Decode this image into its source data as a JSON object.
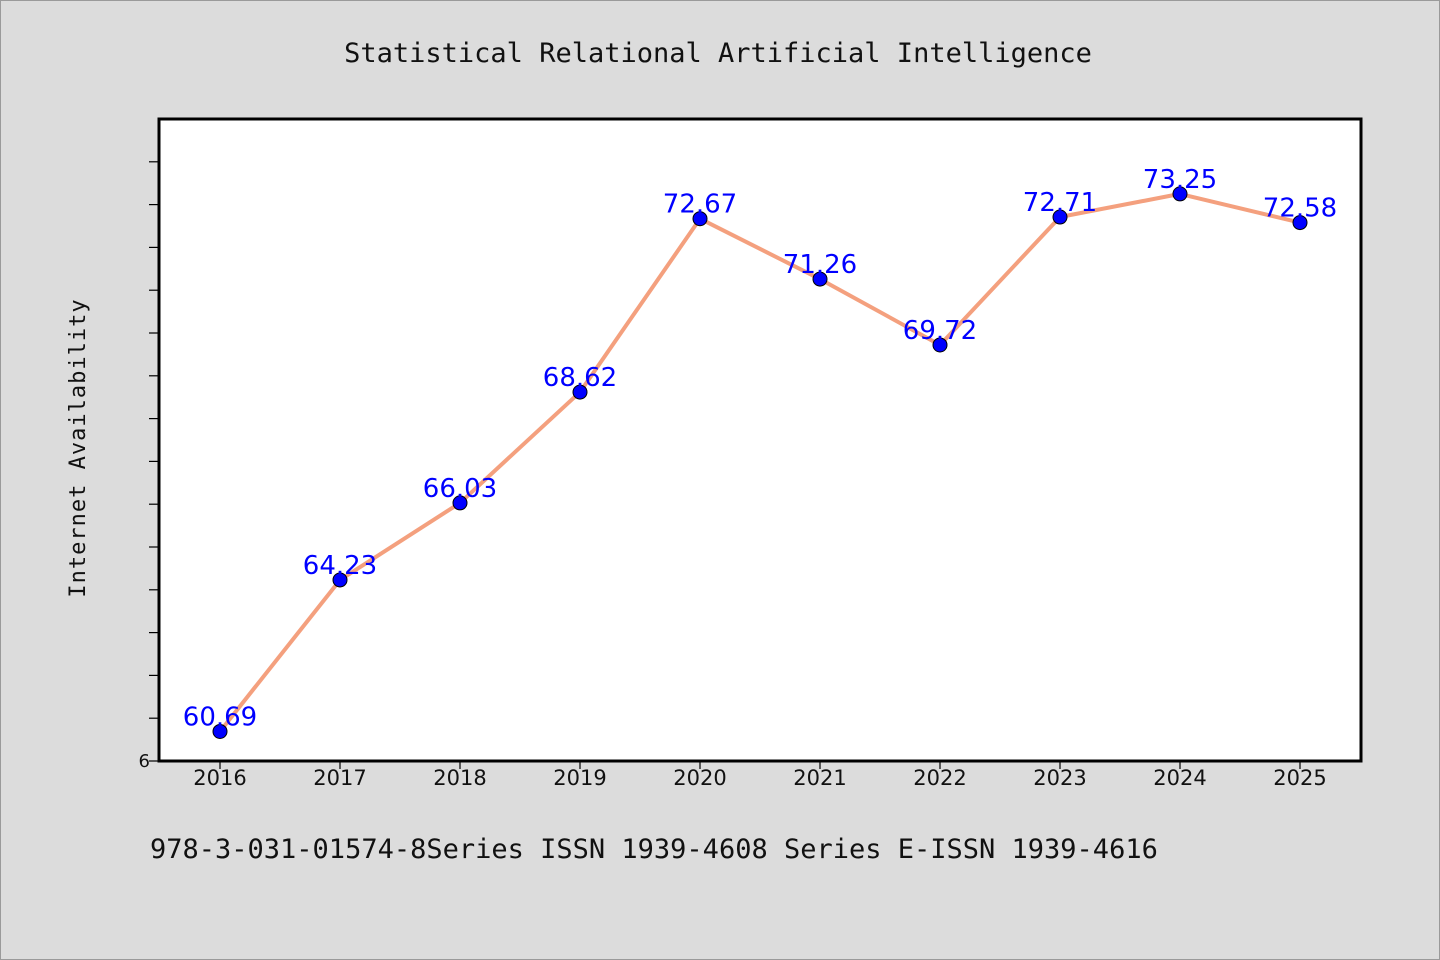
{
  "chart_data": {
    "type": "line",
    "title": "Statistical Relational Artificial Intelligence",
    "xlabel": "",
    "ylabel": "Internet Availability",
    "categories": [
      "2016",
      "2017",
      "2018",
      "2019",
      "2020",
      "2021",
      "2022",
      "2023",
      "2024",
      "2025"
    ],
    "series": [
      {
        "values": [
          60.69,
          64.23,
          66.03,
          68.62,
          72.67,
          71.26,
          69.72,
          72.71,
          73.25,
          72.58
        ],
        "labels": [
          "60.69",
          "64.23",
          "66.03",
          "68.62",
          "72.67",
          "71.26",
          "69.72",
          "72.71",
          "73.25",
          "72.58"
        ],
        "line_color": "#f4a07e",
        "marker_color": "#0000ff"
      }
    ],
    "ylim": [
      60,
      75
    ],
    "y_tick_labels": [
      "6"
    ],
    "grid": false,
    "legend": "none",
    "background": "#ffffff"
  },
  "footnote": "978-3-031-01574-8Series ISSN 1939-4608 Series E-ISSN 1939-4616"
}
